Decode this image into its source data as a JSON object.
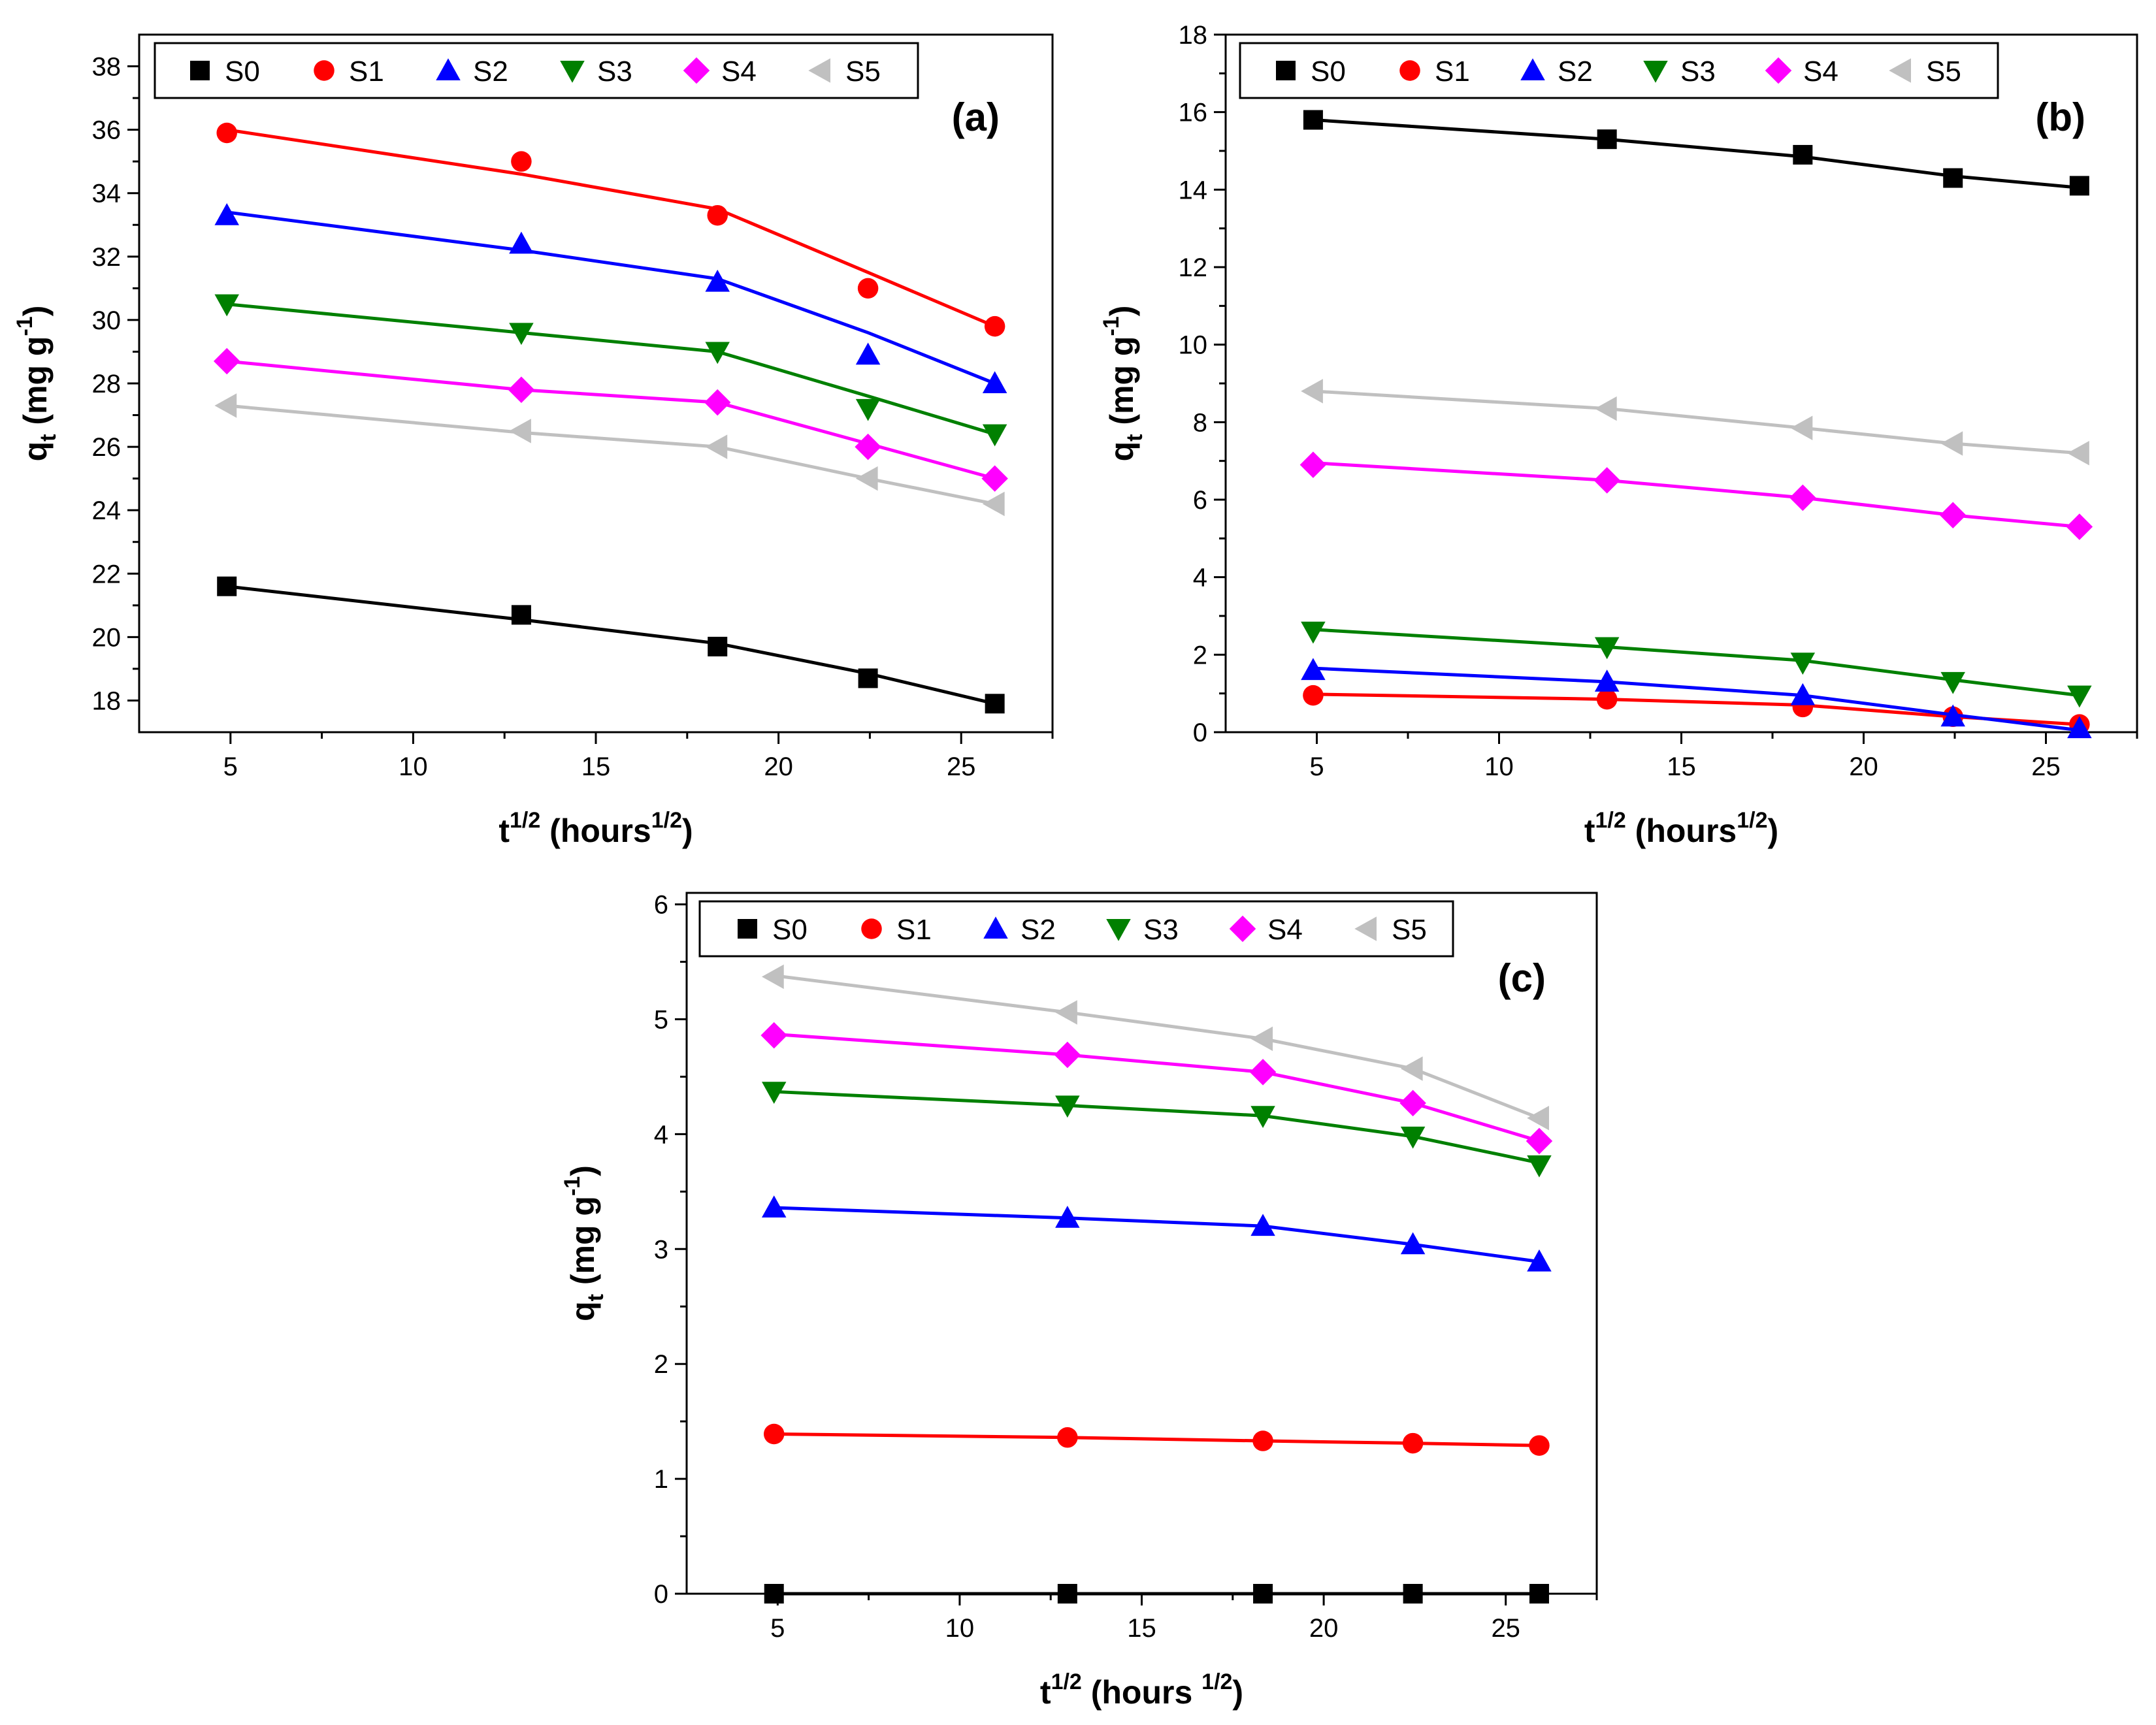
{
  "figure": {
    "series_styles": [
      {
        "name": "S0",
        "color": "#000000",
        "marker": "square"
      },
      {
        "name": "S1",
        "color": "#ff0000",
        "marker": "circle"
      },
      {
        "name": "S2",
        "color": "#0000ff",
        "marker": "triangle-up"
      },
      {
        "name": "S3",
        "color": "#008000",
        "marker": "triangle-down"
      },
      {
        "name": "S4",
        "color": "#ff00ff",
        "marker": "diamond"
      },
      {
        "name": "S5",
        "color": "#c0c0c0",
        "marker": "triangle-left"
      }
    ]
  },
  "chart_data": [
    {
      "type": "line",
      "panel_label": "(a)",
      "ylabel_main": "q",
      "ylabel_sub": "t",
      "ylabel_unit": " (mg g",
      "ylabel_sup": "-1",
      "ylabel_close": ")",
      "xlabel_main": "t",
      "xlabel_sup": "1/2",
      "xlabel_unit": " (hours",
      "xlabel_unit_sup": "1/2",
      "xlabel_close": ")",
      "xlim": [
        2.5,
        27.5
      ],
      "ylim": [
        17,
        39
      ],
      "xticks": [
        5,
        10,
        15,
        20,
        25
      ],
      "yticks": [
        18,
        20,
        22,
        24,
        26,
        28,
        30,
        32,
        34,
        36,
        38
      ],
      "grid": false,
      "legend": "top",
      "x": [
        4.9,
        12.96,
        18.33,
        22.45,
        25.92
      ],
      "series": [
        {
          "name": "S0",
          "values": [
            21.6,
            20.7,
            19.7,
            18.7,
            17.9
          ],
          "fit": [
            21.6,
            20.55,
            19.8,
            18.85,
            17.9
          ]
        },
        {
          "name": "S1",
          "values": [
            35.9,
            35.0,
            33.3,
            31.0,
            29.8
          ],
          "fit": [
            36.0,
            34.6,
            33.5,
            31.5,
            29.8
          ]
        },
        {
          "name": "S2",
          "values": [
            33.3,
            32.4,
            31.2,
            28.9,
            28.0
          ],
          "fit": [
            33.4,
            32.2,
            31.3,
            29.6,
            28.0
          ]
        },
        {
          "name": "S3",
          "values": [
            30.5,
            29.6,
            29.0,
            27.2,
            26.4
          ],
          "fit": [
            30.5,
            29.6,
            29.0,
            27.6,
            26.4
          ]
        },
        {
          "name": "S4",
          "values": [
            28.7,
            27.8,
            27.4,
            26.0,
            25.0
          ],
          "fit": [
            28.7,
            27.8,
            27.4,
            26.1,
            25.0
          ]
        },
        {
          "name": "S5",
          "values": [
            27.3,
            26.5,
            26.0,
            25.0,
            24.2
          ],
          "fit": [
            27.3,
            26.45,
            26.0,
            25.0,
            24.2
          ]
        }
      ]
    },
    {
      "type": "line",
      "panel_label": "(b)",
      "ylabel_main": "q",
      "ylabel_sub": "t",
      "ylabel_unit": " (mg g",
      "ylabel_sup": "-1",
      "ylabel_close": ")",
      "xlabel_main": "t",
      "xlabel_sup": "1/2",
      "xlabel_unit": " (hours",
      "xlabel_unit_sup": "1/2",
      "xlabel_close": ")",
      "xlim": [
        2.5,
        27.5
      ],
      "ylim": [
        0,
        18
      ],
      "xticks": [
        5,
        10,
        15,
        20,
        25
      ],
      "yticks": [
        0,
        2,
        4,
        6,
        8,
        10,
        12,
        14,
        16,
        18
      ],
      "grid": false,
      "legend": "top",
      "x": [
        4.9,
        12.96,
        18.33,
        22.45,
        25.92
      ],
      "series": [
        {
          "name": "S0",
          "values": [
            15.8,
            15.3,
            14.9,
            14.3,
            14.1
          ],
          "fit": [
            15.8,
            15.3,
            14.85,
            14.35,
            14.05
          ]
        },
        {
          "name": "S1",
          "values": [
            0.95,
            0.85,
            0.65,
            0.4,
            0.2
          ],
          "fit": [
            0.98,
            0.85,
            0.7,
            0.4,
            0.2
          ]
        },
        {
          "name": "S2",
          "values": [
            1.6,
            1.3,
            0.95,
            0.4,
            0.1
          ],
          "fit": [
            1.65,
            1.3,
            0.95,
            0.45,
            0.05
          ]
        },
        {
          "name": "S3",
          "values": [
            2.6,
            2.2,
            1.8,
            1.3,
            0.95
          ],
          "fit": [
            2.65,
            2.2,
            1.85,
            1.35,
            0.95
          ]
        },
        {
          "name": "S4",
          "values": [
            6.9,
            6.5,
            6.05,
            5.6,
            5.3
          ],
          "fit": [
            6.95,
            6.5,
            6.05,
            5.6,
            5.3
          ]
        },
        {
          "name": "S5",
          "values": [
            8.8,
            8.35,
            7.85,
            7.45,
            7.2
          ],
          "fit": [
            8.8,
            8.35,
            7.85,
            7.45,
            7.2
          ]
        }
      ]
    },
    {
      "type": "line",
      "panel_label": "(c)",
      "ylabel_main": "q",
      "ylabel_sub": "t",
      "ylabel_unit": " (mg g",
      "ylabel_sup": "-1",
      "ylabel_close": ")",
      "xlabel_main": "t",
      "xlabel_sup": "1/2",
      "xlabel_unit": " (hours ",
      "xlabel_unit_sup": "1/2",
      "xlabel_close": ")",
      "xlim": [
        2.5,
        27.5
      ],
      "ylim": [
        0,
        6.1
      ],
      "xticks": [
        5,
        10,
        15,
        20,
        25
      ],
      "yticks": [
        0,
        1,
        2,
        3,
        4,
        5,
        6
      ],
      "grid": false,
      "legend": "top",
      "x": [
        4.9,
        12.96,
        18.33,
        22.45,
        25.92
      ],
      "series": [
        {
          "name": "S0",
          "values": [
            0.0,
            0.0,
            0.0,
            0.0,
            0.0
          ],
          "fit": [
            0.0,
            0.0,
            0.0,
            0.0,
            0.0
          ]
        },
        {
          "name": "S1",
          "values": [
            1.39,
            1.36,
            1.33,
            1.31,
            1.29
          ],
          "fit": [
            1.39,
            1.36,
            1.33,
            1.31,
            1.29
          ]
        },
        {
          "name": "S2",
          "values": [
            3.36,
            3.27,
            3.2,
            3.04,
            2.89
          ],
          "fit": [
            3.36,
            3.27,
            3.2,
            3.04,
            2.89
          ]
        },
        {
          "name": "S3",
          "values": [
            4.37,
            4.25,
            4.16,
            3.98,
            3.73
          ],
          "fit": [
            4.37,
            4.25,
            4.16,
            3.98,
            3.75
          ]
        },
        {
          "name": "S4",
          "values": [
            4.86,
            4.69,
            4.54,
            4.27,
            3.94
          ],
          "fit": [
            4.87,
            4.69,
            4.54,
            4.27,
            3.94
          ]
        },
        {
          "name": "S5",
          "values": [
            5.37,
            5.06,
            4.83,
            4.57,
            4.14
          ],
          "fit": [
            5.38,
            5.06,
            4.83,
            4.57,
            4.14
          ]
        }
      ]
    }
  ]
}
